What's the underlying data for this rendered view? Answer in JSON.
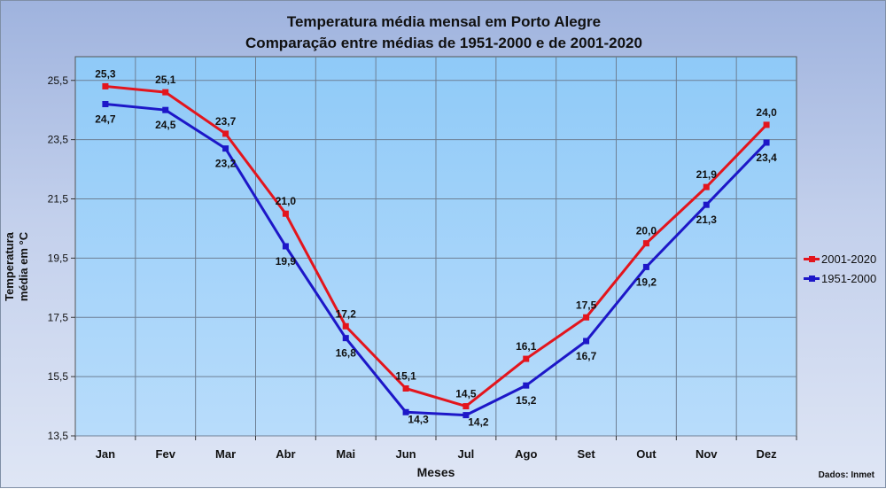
{
  "chart_data": {
    "type": "line",
    "title": "Temperatura média mensal em Porto Alegre",
    "subtitle": "Comparação entre médias de 1951-2000 e de 2001-2020",
    "xlabel": "Meses",
    "ylabel": "Temperatura média em °C",
    "ylim": [
      13.5,
      26.3
    ],
    "yticks": [
      "25,5",
      "23,5",
      "21,5",
      "19,5",
      "17,5",
      "15,5",
      "13,5"
    ],
    "categories": [
      "Jan",
      "Fev",
      "Mar",
      "Abr",
      "Mai",
      "Jun",
      "Jul",
      "Ago",
      "Set",
      "Out",
      "Nov",
      "Dez"
    ],
    "grid": true,
    "legend_position": "right",
    "source": "Dados: Inmet",
    "series": [
      {
        "name": "2001-2020",
        "color": "#e3151d",
        "values": [
          25.3,
          25.1,
          23.7,
          21.0,
          17.2,
          15.1,
          14.5,
          16.1,
          17.5,
          20.0,
          21.9,
          24.0
        ],
        "labels": [
          "25,3",
          "25,1",
          "23,7",
          "21,0",
          "17,2",
          "15,1",
          "14,5",
          "16,1",
          "17,5",
          "20,0",
          "21,9",
          "24,0"
        ]
      },
      {
        "name": "1951-2000",
        "color": "#1d17c8",
        "values": [
          24.7,
          24.5,
          23.2,
          19.9,
          16.8,
          14.3,
          14.2,
          15.2,
          16.7,
          19.2,
          21.3,
          23.4
        ],
        "labels": [
          "24,7",
          "24,5",
          "23,2",
          "19,9",
          "16,8",
          "14,3",
          "14,2",
          "15,2",
          "16,7",
          "19,2",
          "21,3",
          "23,4"
        ]
      }
    ]
  }
}
